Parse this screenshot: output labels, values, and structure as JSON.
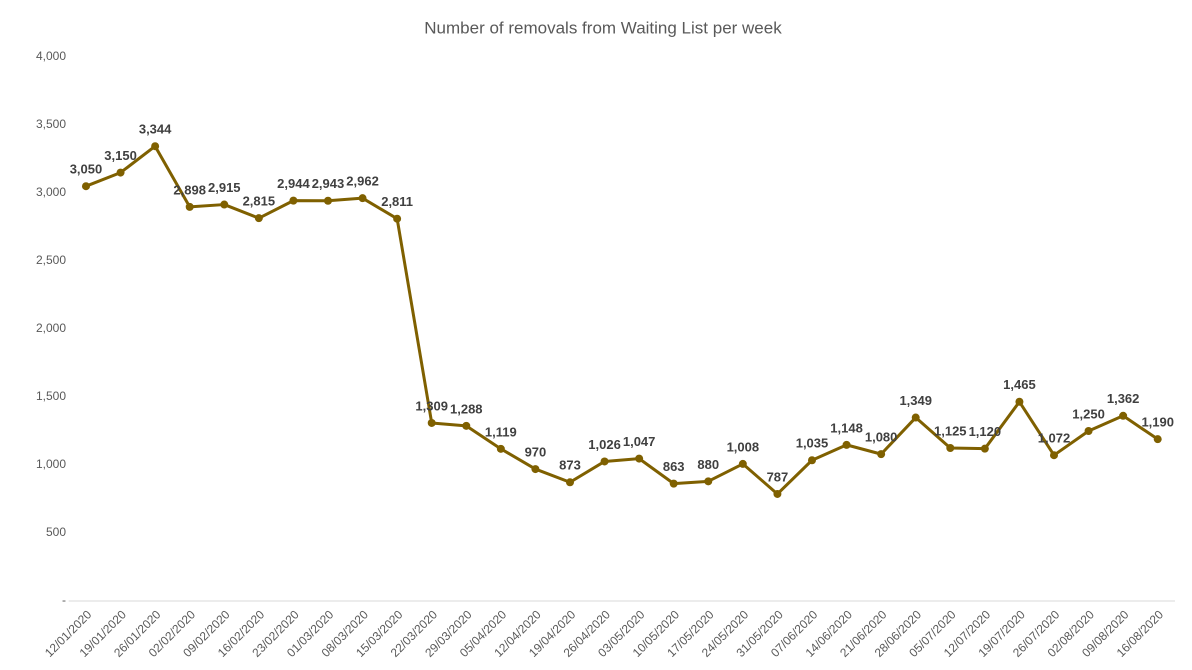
{
  "chart_data": {
    "type": "line",
    "title": "Number of removals from Waiting List per week",
    "categories": [
      "12/01/2020",
      "19/01/2020",
      "26/01/2020",
      "02/02/2020",
      "09/02/2020",
      "16/02/2020",
      "23/02/2020",
      "01/03/2020",
      "08/03/2020",
      "15/03/2020",
      "22/03/2020",
      "29/03/2020",
      "05/04/2020",
      "12/04/2020",
      "19/04/2020",
      "26/04/2020",
      "03/05/2020",
      "10/05/2020",
      "17/05/2020",
      "24/05/2020",
      "31/05/2020",
      "07/06/2020",
      "14/06/2020",
      "21/06/2020",
      "28/06/2020",
      "05/07/2020",
      "12/07/2020",
      "19/07/2020",
      "26/07/2020",
      "02/08/2020",
      "09/08/2020",
      "16/08/2020"
    ],
    "series": [
      {
        "name": "Removals",
        "color": "#7f6000",
        "values": [
          3050,
          3150,
          3344,
          2898,
          2915,
          2815,
          2944,
          2943,
          2962,
          2811,
          1309,
          1288,
          1119,
          970,
          873,
          1026,
          1047,
          863,
          880,
          1008,
          787,
          1035,
          1148,
          1080,
          1349,
          1125,
          1120,
          1465,
          1072,
          1250,
          1362,
          1190
        ],
        "value_labels": [
          "3,050",
          "3,150",
          "3,344",
          "2,898",
          "2,915",
          "2,815",
          "2,944",
          "2,943",
          "2,962",
          "2,811",
          "1,309",
          "1,288",
          "1,119",
          "970",
          "873",
          "1,026",
          "1,047",
          "863",
          "880",
          "1,008",
          "787",
          "1,035",
          "1,148",
          "1,080",
          "1,349",
          "1,125",
          "1,120",
          "1,465",
          "1,072",
          "1,250",
          "1,362",
          "1,190"
        ]
      }
    ],
    "ylim": [
      0,
      4000
    ],
    "yticks": [
      {
        "value": 0,
        "label": "-"
      },
      500,
      {
        "value": 1000,
        "label": "1,000"
      },
      {
        "value": 1500,
        "label": "1,500"
      },
      {
        "value": 2000,
        "label": "2,000"
      },
      {
        "value": 2500,
        "label": "2,500"
      },
      {
        "value": 3000,
        "label": "3,000"
      },
      {
        "value": 3500,
        "label": "3,500"
      },
      {
        "value": 4000,
        "label": "4,000"
      }
    ],
    "grid": false
  }
}
